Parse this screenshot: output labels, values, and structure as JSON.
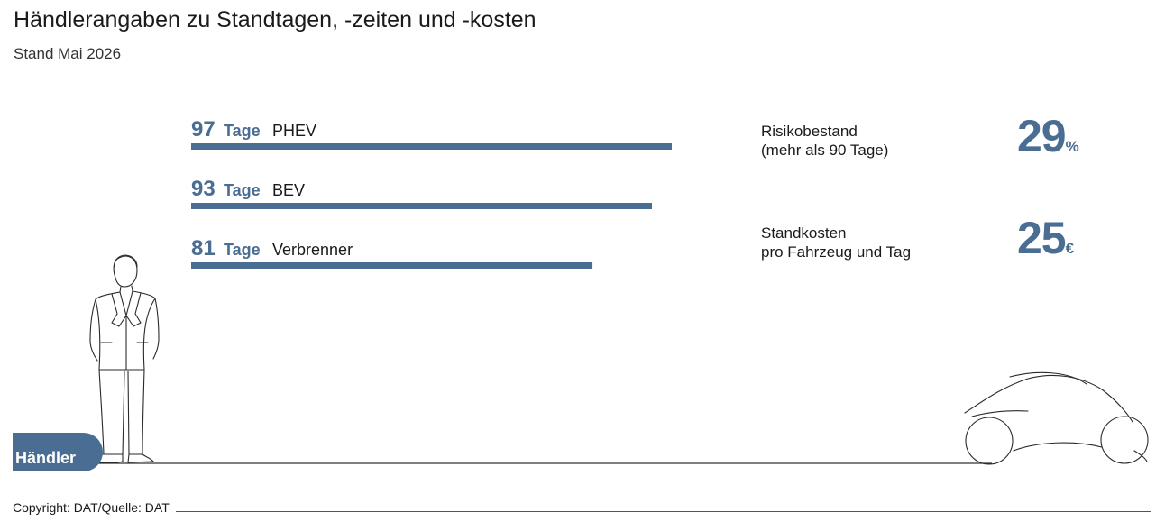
{
  "header": {
    "title": "Händlerangaben zu Standtagen, -zeiten und -kosten",
    "subtitle": "Stand Mai 2026"
  },
  "chart_data": {
    "type": "bar",
    "orientation": "horizontal",
    "unit_label": "Tage",
    "categories": [
      "PHEV",
      "BEV",
      "Verbrenner"
    ],
    "values": [
      97,
      93,
      81
    ],
    "grid": false
  },
  "stats": [
    {
      "label_line1": "Risikobestand",
      "label_line2": "(mehr als 90 Tage)",
      "value": "29",
      "unit": "%"
    },
    {
      "label_line1": "Standkosten",
      "label_line2": "pro Fahrzeug und Tag",
      "value": "25",
      "unit": "€"
    }
  ],
  "badge": {
    "label": "Händler"
  },
  "footer": {
    "copyright": "Copyright: DAT/Quelle: DAT"
  },
  "colors": {
    "accent": "#4a6d94",
    "text": "#1a1a1a",
    "line": "#333333"
  },
  "illustrations": {
    "person": "standing-man-line-drawing",
    "car": "car-line-drawing"
  }
}
